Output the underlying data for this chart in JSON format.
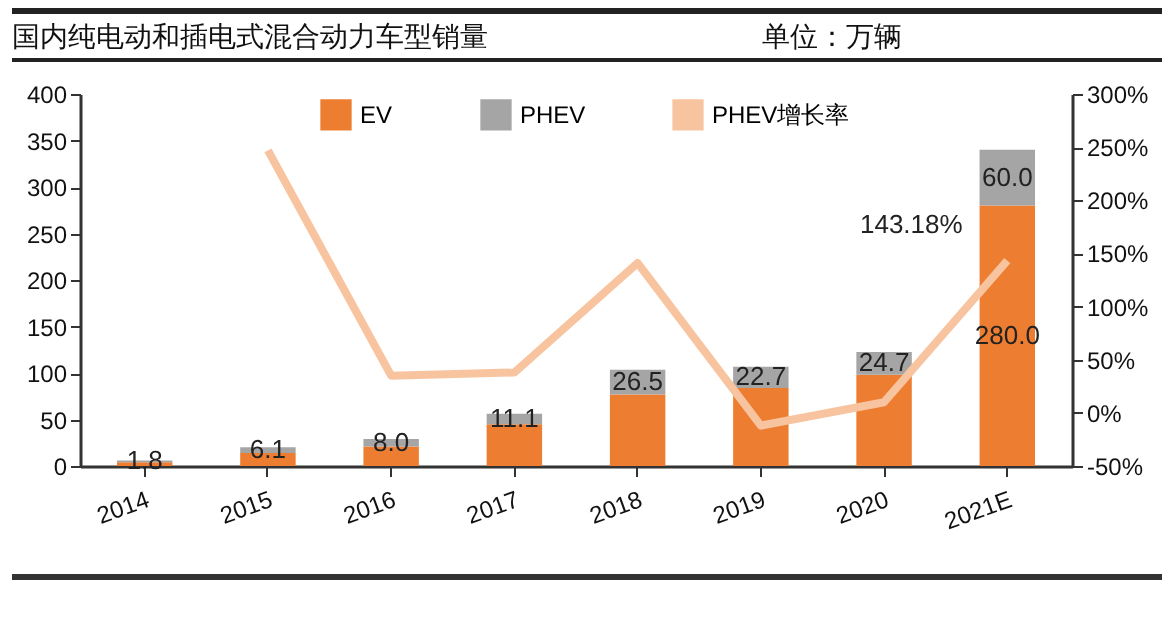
{
  "chart_data": {
    "type": "bar",
    "title": "国内纯电动和插电式混合动力车型销量",
    "annotations": [
      "单位：万辆"
    ],
    "categories": [
      "2014",
      "2015",
      "2016",
      "2017",
      "2018",
      "2019",
      "2020",
      "2021E"
    ],
    "stacked": true,
    "series": [
      {
        "name": "EV",
        "color": "#ed7d31",
        "values": [
          4,
          14,
          21,
          45,
          77,
          84,
          98,
          280
        ],
        "value_labels": [
          null,
          null,
          null,
          null,
          null,
          null,
          null,
          "280.0"
        ]
      },
      {
        "name": "PHEV",
        "color": "#a5a5a5",
        "values": [
          1.8,
          6.1,
          8.0,
          11.1,
          26.5,
          22.7,
          24.7,
          60.0
        ],
        "value_labels": [
          "1.8",
          "6.1",
          "8.0",
          "11.1",
          "26.5",
          "22.7",
          "24.7",
          "60.0"
        ]
      },
      {
        "name": "PHEV增长率",
        "type": "line",
        "axis": "y2",
        "color": "#f8c4a0",
        "values": [
          null,
          247,
          35,
          38,
          141,
          -12,
          10,
          143.18
        ],
        "value_labels": [
          null,
          null,
          null,
          null,
          null,
          null,
          null,
          "143.18%"
        ]
      }
    ],
    "ylim": [
      0,
      400
    ],
    "yticks": [
      0,
      50,
      100,
      150,
      200,
      250,
      300,
      350,
      400
    ],
    "y2lim": [
      -50,
      300
    ],
    "y2ticks": [
      {
        "value": -50,
        "label": "-50%"
      },
      {
        "value": 0,
        "label": "0%"
      },
      {
        "value": 50,
        "label": "50%"
      },
      {
        "value": 100,
        "label": "100%"
      },
      {
        "value": 150,
        "label": "150%"
      },
      {
        "value": 200,
        "label": "200%"
      },
      {
        "value": 250,
        "label": "250%"
      },
      {
        "value": 300,
        "label": "300%"
      }
    ],
    "grid": false,
    "legend": "top",
    "line_style": "solid",
    "marker": "none"
  }
}
